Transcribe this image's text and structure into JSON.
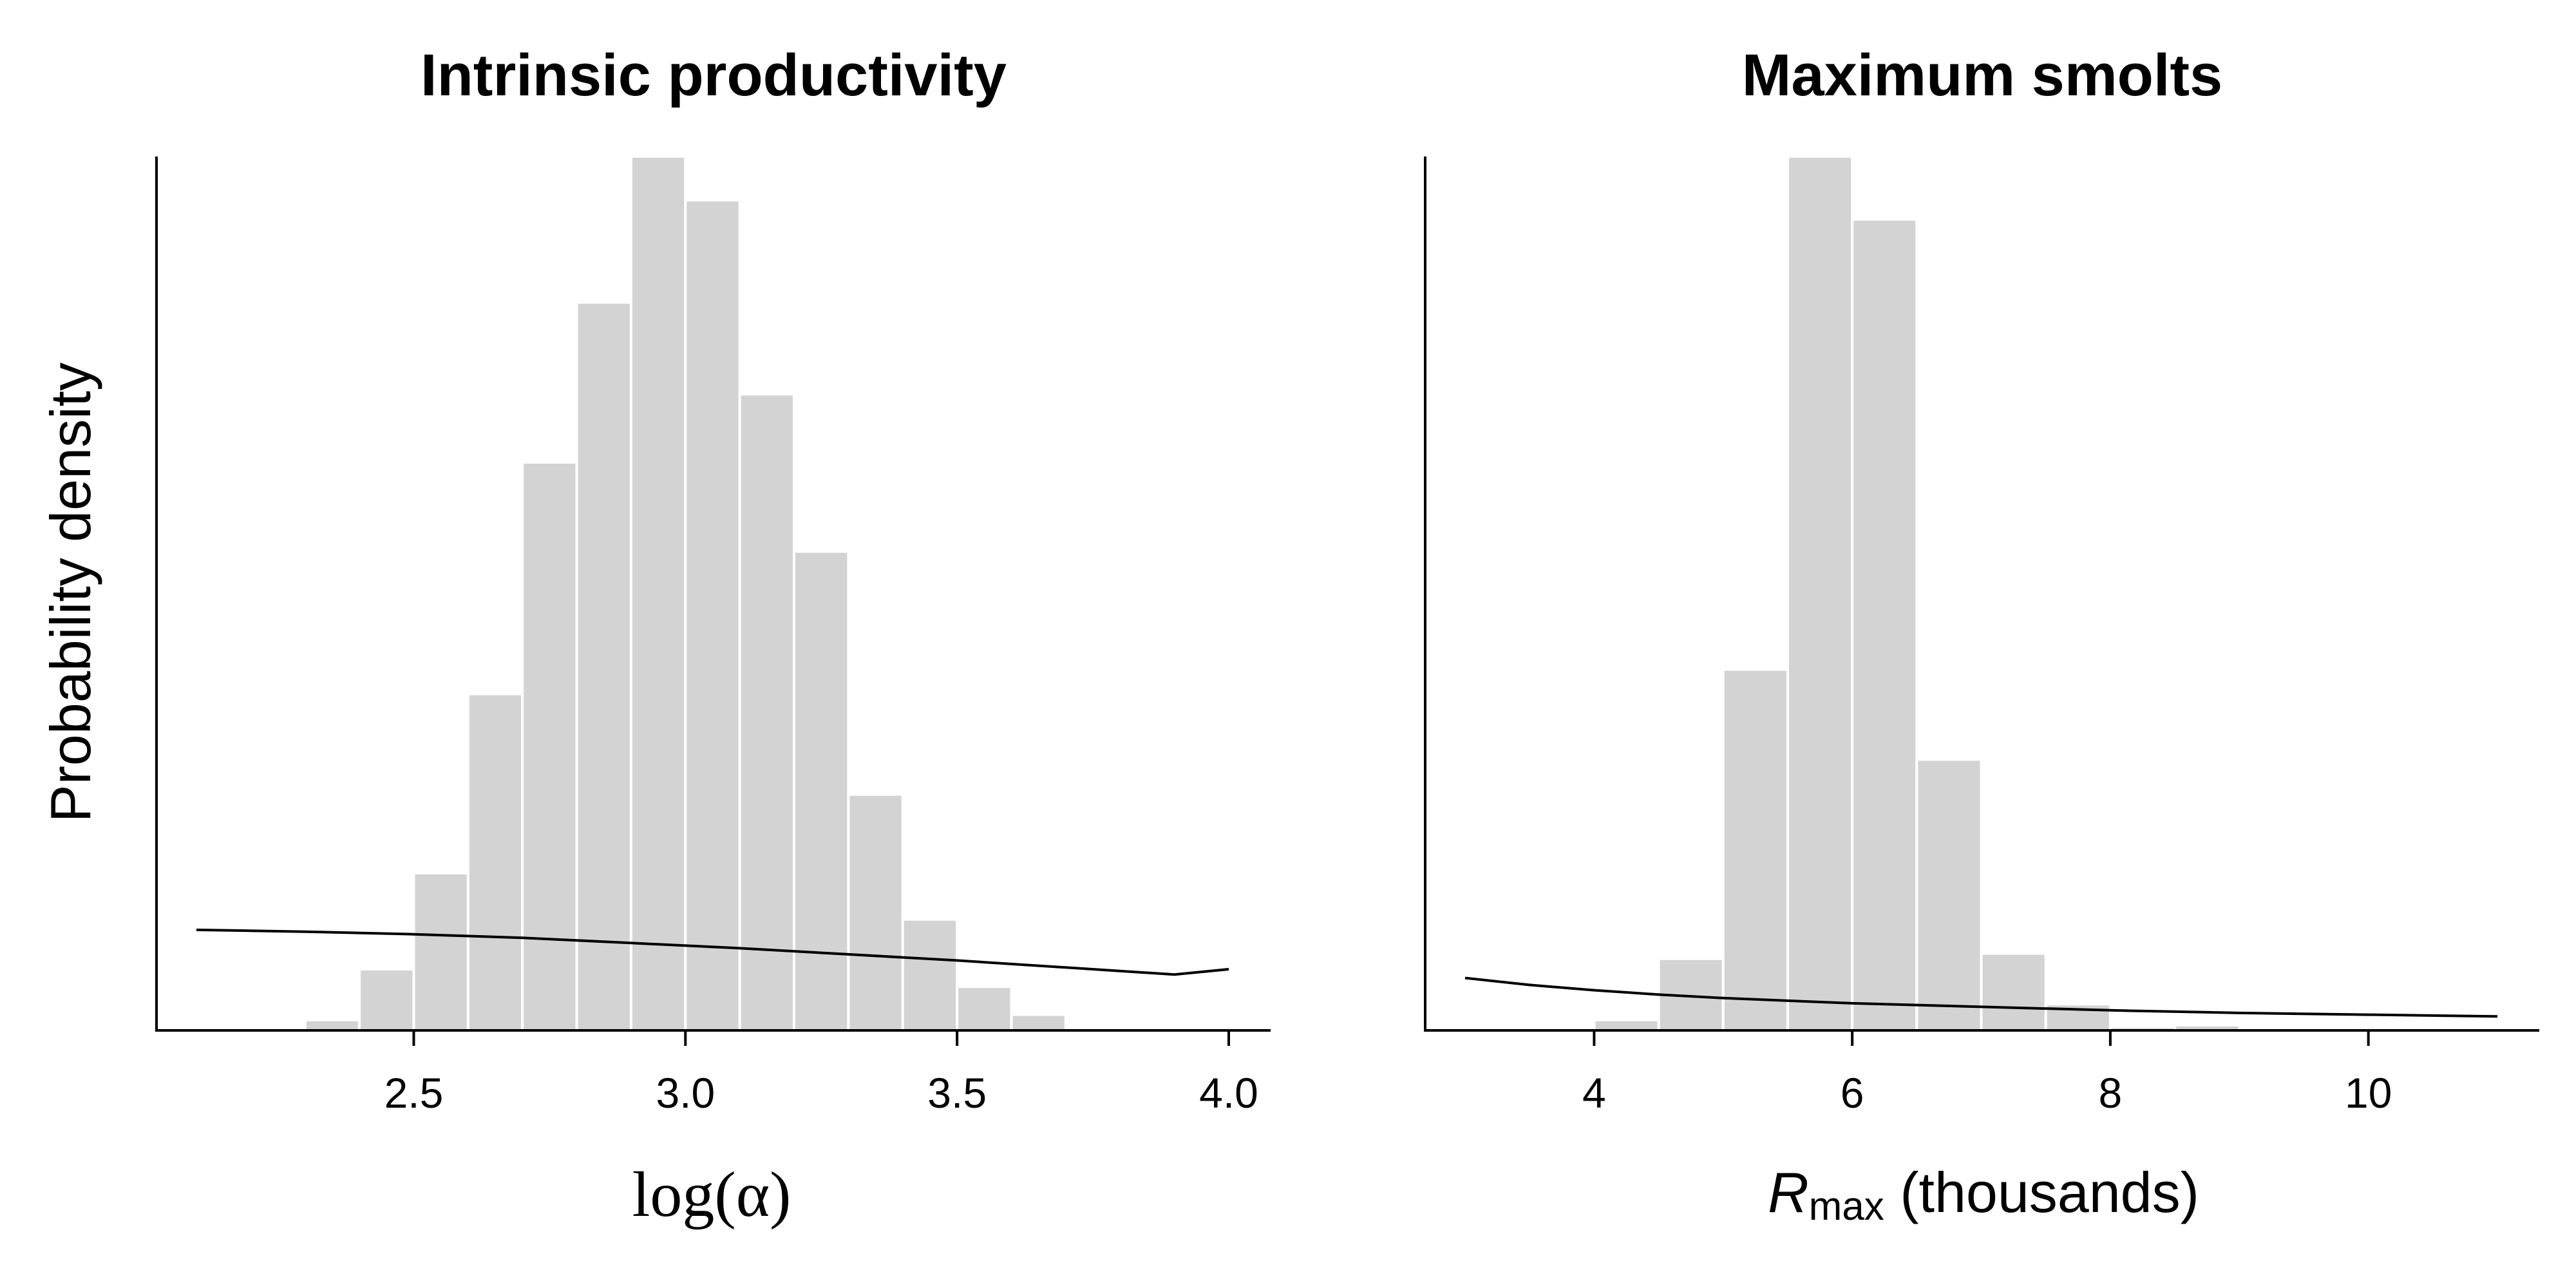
{
  "ylabel": "Probability density",
  "chart_data": [
    {
      "type": "bar",
      "title": "Intrinsic productivity",
      "xlabel": "log(α)",
      "xlabel_main": "log(",
      "xlabel_symbol": "α",
      "xlabel_close": ")",
      "xlim": [
        2.1,
        4.0
      ],
      "ylim": [
        0,
        1
      ],
      "xticks": [
        2.5,
        3.0,
        3.5,
        4.0
      ],
      "xtick_labels": [
        "2.5",
        "3.0",
        "3.5",
        "4.0"
      ],
      "bin_width": 0.1,
      "bins": [
        {
          "x0": 2.1,
          "x1": 2.2,
          "density": 0.003
        },
        {
          "x0": 2.3,
          "x1": 2.4,
          "density": 0.012
        },
        {
          "x0": 2.4,
          "x1": 2.5,
          "density": 0.07
        },
        {
          "x0": 2.5,
          "x1": 2.6,
          "density": 0.18
        },
        {
          "x0": 2.6,
          "x1": 2.7,
          "density": 0.385
        },
        {
          "x0": 2.7,
          "x1": 2.8,
          "density": 0.65
        },
        {
          "x0": 2.8,
          "x1": 2.9,
          "density": 0.833
        },
        {
          "x0": 2.9,
          "x1": 3.0,
          "density": 1.0
        },
        {
          "x0": 3.0,
          "x1": 3.1,
          "density": 0.95
        },
        {
          "x0": 3.1,
          "x1": 3.2,
          "density": 0.728
        },
        {
          "x0": 3.2,
          "x1": 3.3,
          "density": 0.548
        },
        {
          "x0": 3.3,
          "x1": 3.4,
          "density": 0.27
        },
        {
          "x0": 3.4,
          "x1": 3.5,
          "density": 0.127
        },
        {
          "x0": 3.5,
          "x1": 3.6,
          "density": 0.05
        },
        {
          "x0": 3.6,
          "x1": 3.7,
          "density": 0.018
        }
      ],
      "prior_curve": {
        "x": [
          2.1,
          2.3,
          2.5,
          2.7,
          2.9,
          3.1,
          3.3,
          3.5,
          3.7,
          3.9,
          4.0
        ],
        "y": [
          0.115,
          0.113,
          0.11,
          0.106,
          0.1,
          0.094,
          0.087,
          0.08,
          0.072,
          0.064,
          0.07
        ]
      }
    },
    {
      "type": "bar",
      "title": "Maximum smolts",
      "xlabel": "Rmax (thousands)",
      "xlabel_main": "R",
      "xlabel_sub": "max",
      "xlabel_rest": " (thousands)",
      "xlim": [
        3.0,
        11.0
      ],
      "ylim": [
        0,
        1
      ],
      "xticks": [
        4,
        6,
        8,
        10
      ],
      "xtick_labels": [
        "4",
        "6",
        "8",
        "10"
      ],
      "bin_width": 0.5,
      "bins": [
        {
          "x0": 4.0,
          "x1": 4.5,
          "density": 0.012
        },
        {
          "x0": 4.5,
          "x1": 5.0,
          "density": 0.082
        },
        {
          "x0": 5.0,
          "x1": 5.5,
          "density": 0.413
        },
        {
          "x0": 5.5,
          "x1": 6.0,
          "density": 1.0
        },
        {
          "x0": 6.0,
          "x1": 6.5,
          "density": 0.928
        },
        {
          "x0": 6.5,
          "x1": 7.0,
          "density": 0.31
        },
        {
          "x0": 7.0,
          "x1": 7.5,
          "density": 0.088
        },
        {
          "x0": 7.5,
          "x1": 8.0,
          "density": 0.03
        },
        {
          "x0": 8.0,
          "x1": 8.5,
          "density": 0.004
        },
        {
          "x0": 8.5,
          "x1": 9.0,
          "density": 0.006
        }
      ],
      "prior_curve": {
        "x": [
          3.0,
          3.5,
          4.0,
          4.5,
          5.0,
          5.5,
          6.0,
          6.5,
          7.0,
          8.0,
          9.0,
          10.0,
          11.0
        ],
        "y": [
          0.06,
          0.052,
          0.046,
          0.041,
          0.037,
          0.034,
          0.031,
          0.029,
          0.027,
          0.023,
          0.02,
          0.018,
          0.016
        ]
      }
    }
  ]
}
